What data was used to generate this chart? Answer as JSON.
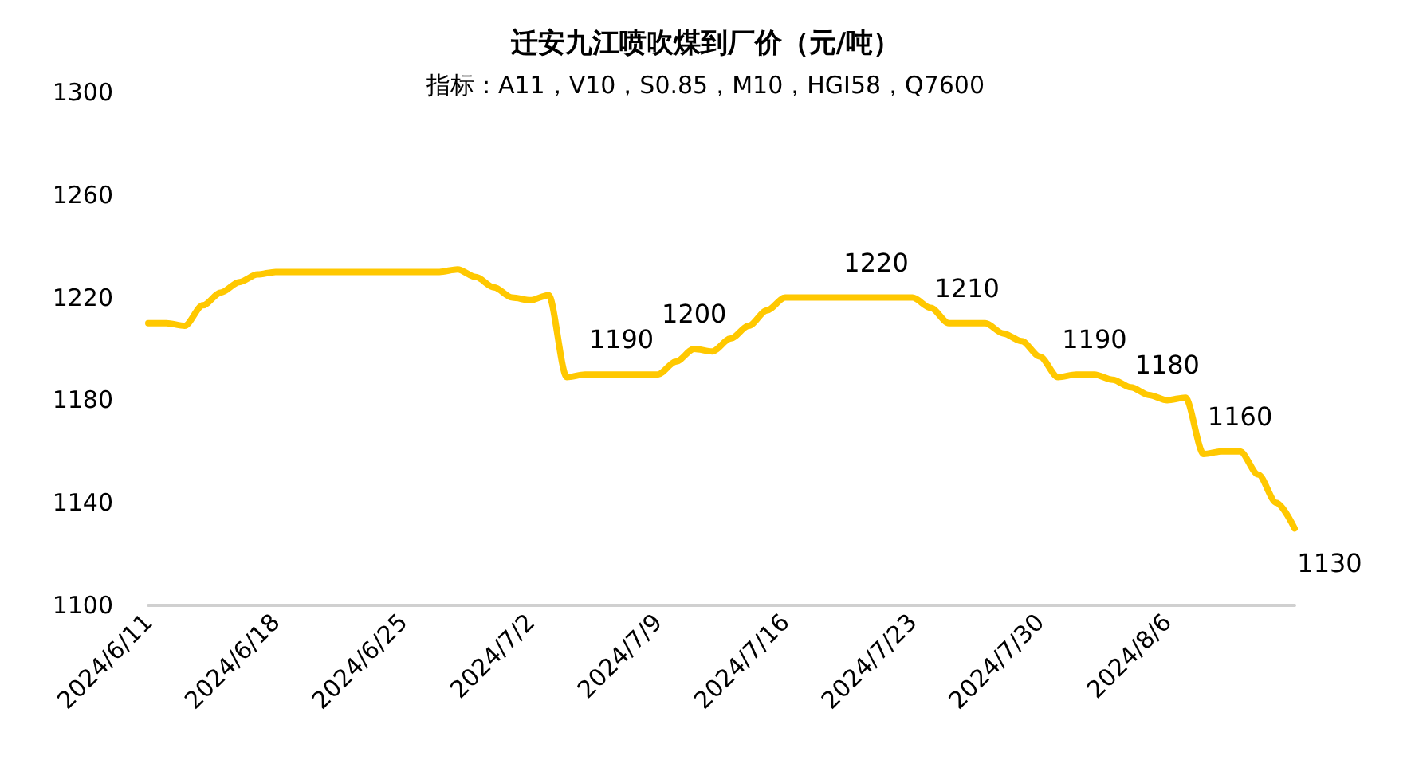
{
  "chart_data": {
    "type": "line",
    "title": "迁安九江喷吹煤到厂价（元/吨）",
    "subtitle": "指标：A11，V10，S0.85，M10，HGI58，Q7600",
    "categories": [
      "2024/6/11",
      null,
      null,
      null,
      null,
      null,
      null,
      "2024/6/18",
      null,
      null,
      null,
      null,
      null,
      null,
      "2024/6/25",
      null,
      null,
      null,
      null,
      null,
      null,
      "2024/7/2",
      null,
      null,
      null,
      null,
      null,
      null,
      "2024/7/9",
      null,
      null,
      null,
      null,
      null,
      null,
      "2024/7/16",
      null,
      null,
      null,
      null,
      null,
      null,
      "2024/7/23",
      null,
      null,
      null,
      null,
      null,
      null,
      "2024/7/30",
      null,
      null,
      null,
      null,
      null,
      null,
      "2024/8/6",
      null,
      null,
      null,
      null,
      null,
      null,
      null
    ],
    "series": [
      {
        "color": "#ffc800",
        "values": [
          1210,
          1210,
          1209,
          1217,
          1222,
          1226,
          1229,
          1230,
          1230,
          1230,
          1230,
          1230,
          1230,
          1230,
          1230,
          1230,
          1230,
          1231,
          1228,
          1224,
          1220,
          1219,
          1221,
          1189,
          1190,
          1190,
          1190,
          1190,
          1190,
          1195,
          1200,
          1199,
          1204,
          1209,
          1215,
          1220,
          1220,
          1220,
          1220,
          1220,
          1220,
          1220,
          1220,
          1216,
          1210,
          1210,
          1210,
          1206,
          1203,
          1197,
          1189,
          1190,
          1190,
          1188,
          1185,
          1182,
          1180,
          1181,
          1159,
          1160,
          1160,
          1151,
          1140,
          1130
        ],
        "value_labels": [
          null,
          null,
          null,
          null,
          null,
          null,
          null,
          null,
          null,
          null,
          null,
          null,
          null,
          null,
          null,
          null,
          null,
          null,
          null,
          null,
          null,
          null,
          null,
          null,
          null,
          null,
          "1190",
          null,
          null,
          null,
          "1200",
          null,
          null,
          null,
          null,
          null,
          null,
          null,
          null,
          null,
          "1220",
          null,
          null,
          null,
          null,
          "1210",
          null,
          null,
          null,
          null,
          null,
          null,
          "1190",
          null,
          null,
          null,
          "1180",
          null,
          null,
          null,
          "1160",
          null,
          null,
          "1130"
        ]
      }
    ],
    "ylim": [
      1100,
      1300
    ],
    "yticks": [
      1100,
      1140,
      1180,
      1220,
      1260,
      1300
    ],
    "grid": false,
    "marker": "none",
    "line_style": "solid"
  }
}
